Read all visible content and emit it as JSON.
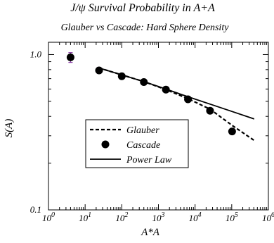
{
  "chart_data": {
    "type": "line",
    "title": "J/ψ Survival Probability in A+A",
    "subtitle": "Glauber vs Cascade: Hard Sphere Density",
    "xlabel": "A*A",
    "ylabel": "S(A)",
    "xscale": "log",
    "yscale": "log",
    "xlim": [
      1,
      1000000
    ],
    "ylim": [
      0.1,
      1.2
    ],
    "x_ticks": [
      {
        "value": 1,
        "base": "10",
        "exp": "0"
      },
      {
        "value": 10,
        "base": "10",
        "exp": "1"
      },
      {
        "value": 100,
        "base": "10",
        "exp": "2"
      },
      {
        "value": 1000,
        "base": "10",
        "exp": "3"
      },
      {
        "value": 10000,
        "base": "10",
        "exp": "4"
      },
      {
        "value": 100000,
        "base": "10",
        "exp": "5"
      },
      {
        "value": 1000000,
        "base": "10",
        "exp": "6"
      }
    ],
    "y_ticks": [
      {
        "value": 1.0,
        "label": "1.0"
      },
      {
        "value": 0.1,
        "label": "0.1"
      }
    ],
    "grid": false,
    "legend_position": "lower-left",
    "series": [
      {
        "name": "Glauber",
        "style": "dashed-line",
        "color": "#000000",
        "x": [
          24,
          100,
          400,
          1600,
          6400,
          25600,
          102400,
          409600
        ],
        "y": [
          0.82,
          0.74,
          0.67,
          0.595,
          0.52,
          0.445,
          0.35,
          0.28
        ]
      },
      {
        "name": "Cascade",
        "style": "points",
        "color": "#000000",
        "error_color": "#8b3fa8",
        "x": [
          4,
          24,
          100,
          400,
          1600,
          6400,
          25600,
          102400
        ],
        "y": [
          0.96,
          0.79,
          0.725,
          0.665,
          0.595,
          0.515,
          0.435,
          0.32
        ],
        "err": [
          0.07,
          0.035,
          0.012,
          0.012,
          0.01,
          0.01,
          0.01,
          0.012
        ]
      },
      {
        "name": "Power Law",
        "style": "solid-line",
        "color": "#000000",
        "x": [
          24,
          100,
          400,
          1600,
          6400,
          25600,
          102400,
          409600
        ],
        "y": [
          0.82,
          0.74,
          0.67,
          0.6,
          0.535,
          0.48,
          0.43,
          0.385
        ]
      }
    ]
  }
}
